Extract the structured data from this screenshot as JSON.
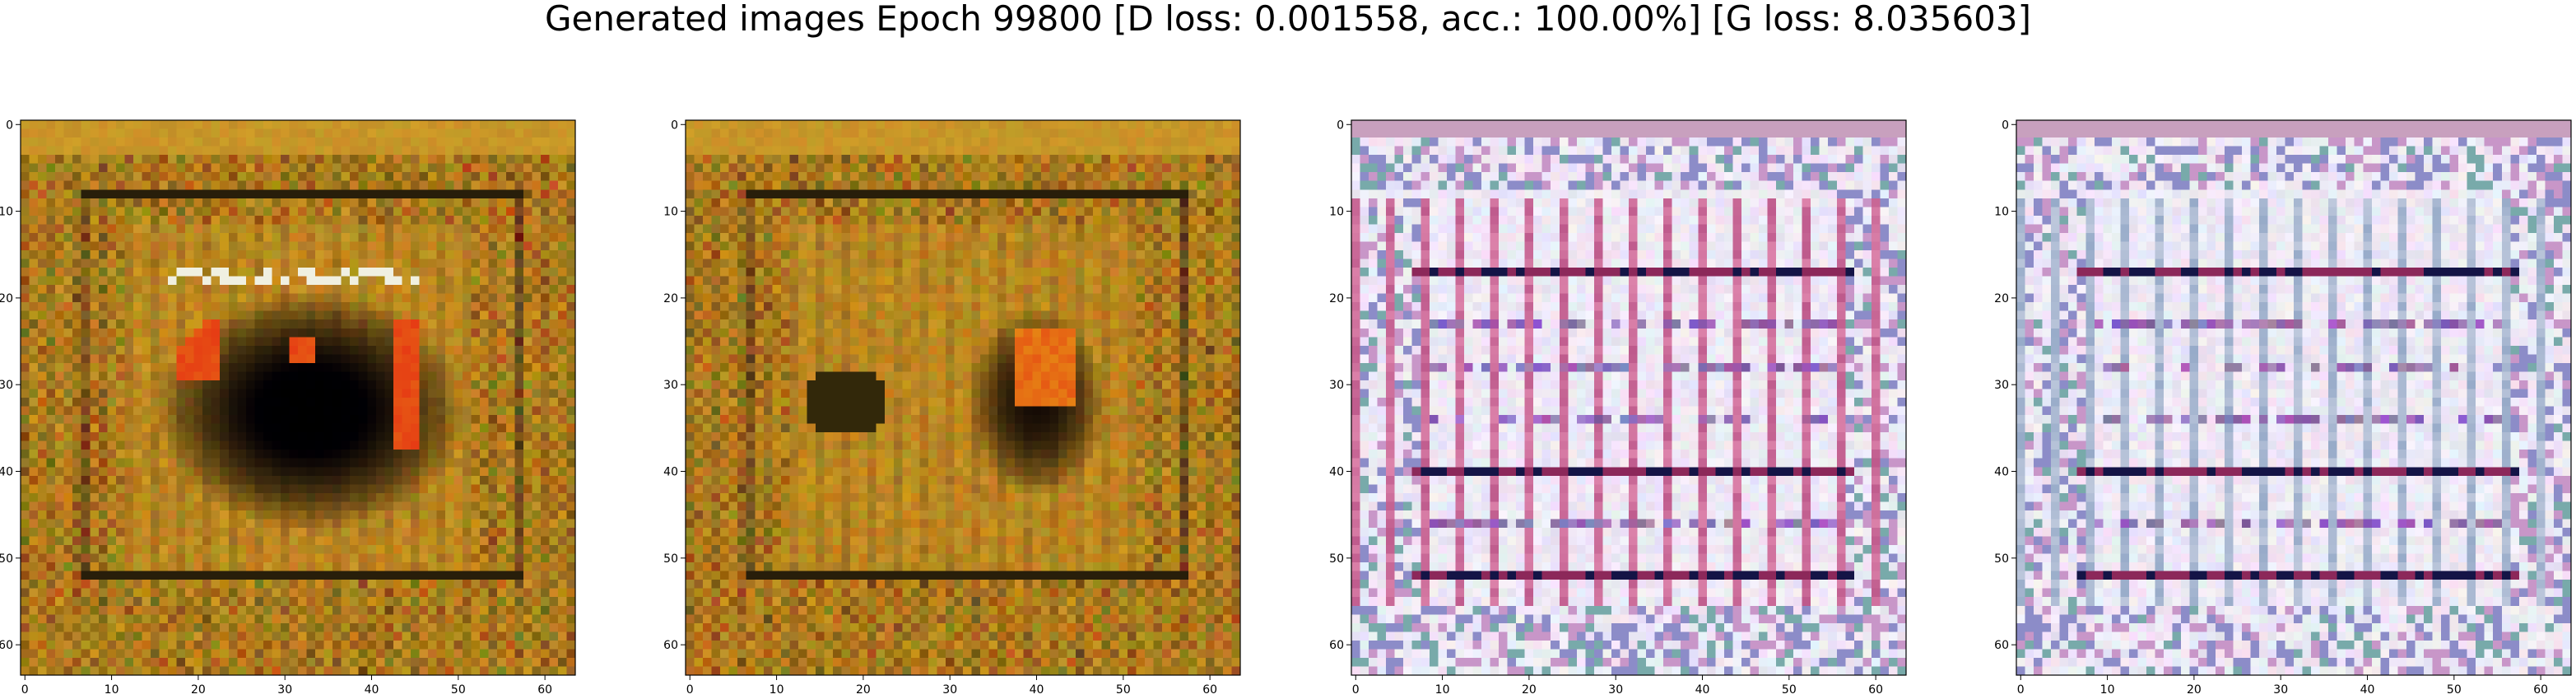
{
  "title": "Generated images Epoch 99800 [D loss: 0.001558, acc.: 100.00%] [G loss: 8.035603]",
  "chart_data": [
    {
      "type": "heatmap",
      "description_hint": "generated-image-1",
      "palette": "warm",
      "xlim": [
        -0.5,
        63.5
      ],
      "ylim": [
        63.5,
        -0.5
      ],
      "xticks": [
        "0",
        "10",
        "20",
        "30",
        "40",
        "50",
        "60"
      ],
      "yticks": [
        "0",
        "10",
        "20",
        "30",
        "40",
        "50",
        "60"
      ]
    },
    {
      "type": "heatmap",
      "description_hint": "generated-image-2",
      "palette": "warm",
      "xlim": [
        -0.5,
        63.5
      ],
      "ylim": [
        63.5,
        -0.5
      ],
      "xticks": [
        "0",
        "10",
        "20",
        "30",
        "40",
        "50",
        "60"
      ],
      "yticks": [
        "0",
        "10",
        "20",
        "30",
        "40",
        "50",
        "60"
      ]
    },
    {
      "type": "heatmap",
      "description_hint": "generated-image-3",
      "palette": "light-grid",
      "xlim": [
        -0.5,
        63.5
      ],
      "ylim": [
        63.5,
        -0.5
      ],
      "xticks": [
        "0",
        "10",
        "20",
        "30",
        "40",
        "50",
        "60"
      ],
      "yticks": [
        "0",
        "10",
        "20",
        "30",
        "40",
        "50",
        "60"
      ]
    },
    {
      "type": "heatmap",
      "description_hint": "generated-image-4",
      "palette": "light-grid",
      "xlim": [
        -0.5,
        63.5
      ],
      "ylim": [
        63.5,
        -0.5
      ],
      "xticks": [
        "0",
        "10",
        "20",
        "30",
        "40",
        "50",
        "60"
      ],
      "yticks": [
        "0",
        "10",
        "20",
        "30",
        "40",
        "50",
        "60"
      ]
    }
  ]
}
